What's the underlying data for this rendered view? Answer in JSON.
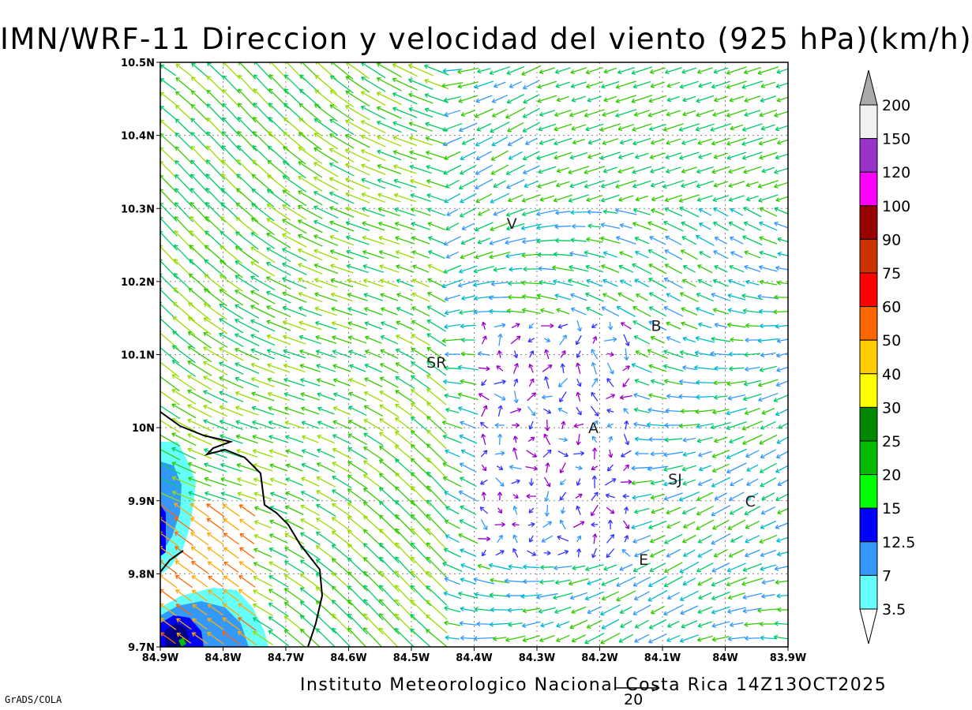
{
  "title": "IMN/WRF-11 Direccion y velocidad del viento (925 hPa)(km/h)",
  "credit": "Instituto Meteorologico Nacional Costa Rica 14Z13OCT2025",
  "software": "GrADS/COLA",
  "reference_vector": {
    "label": "20",
    "value_kmh": 20
  },
  "map": {
    "lon_range": [
      -84.9,
      -83.9
    ],
    "lat_range": [
      9.7,
      10.5
    ],
    "grid": "dotted",
    "x_ticks": [
      "84.9W",
      "84.8W",
      "84.7W",
      "84.6W",
      "84.5W",
      "84.4W",
      "84.3W",
      "84.2W",
      "84.1W",
      "84W",
      "83.9W"
    ],
    "y_ticks": [
      "9.7N",
      "9.8N",
      "9.9N",
      "10N",
      "10.1N",
      "10.2N",
      "10.3N",
      "10.4N",
      "10.5N"
    ],
    "y_tick_values": [
      9.7,
      9.8,
      9.9,
      10.0,
      10.1,
      10.2,
      10.3,
      10.4,
      10.5
    ],
    "places": [
      {
        "label": "V",
        "lon": -84.34,
        "lat": 10.28
      },
      {
        "label": "B",
        "lon": -84.11,
        "lat": 10.14
      },
      {
        "label": "SR",
        "lon": -84.46,
        "lat": 10.09
      },
      {
        "label": "A",
        "lon": -84.21,
        "lat": 10.0
      },
      {
        "label": "SJ",
        "lon": -84.08,
        "lat": 9.93
      },
      {
        "label": "C",
        "lon": -83.96,
        "lat": 9.9
      },
      {
        "label": "E",
        "lon": -84.13,
        "lat": 9.82
      }
    ]
  },
  "colorbar": {
    "levels": [
      "200",
      "150",
      "120",
      "100",
      "90",
      "75",
      "60",
      "50",
      "40",
      "30",
      "25",
      "20",
      "15",
      "12.5",
      "7",
      "3.5"
    ],
    "colors": [
      "#f2f2f2",
      "#9933cc",
      "#ff00ff",
      "#990000",
      "#cc3300",
      "#ff0000",
      "#ff6600",
      "#ffcc00",
      "#ffff00",
      "#008800",
      "#00bb00",
      "#00ff00",
      "#0000ff",
      "#3399ff",
      "#66ffff"
    ],
    "top_arrow_color": "#aaaaaa",
    "bottom_arrow_color": "#ffffff"
  },
  "colors": {
    "coastline": "#000000",
    "grid": "#888888",
    "vectors": [
      "#9900cc",
      "#3333ff",
      "#3399ff",
      "#00bbcc",
      "#00cc66",
      "#33cc00",
      "#99dd00",
      "#dddd00",
      "#ffaa00",
      "#ff6600",
      "#ff0033"
    ]
  }
}
